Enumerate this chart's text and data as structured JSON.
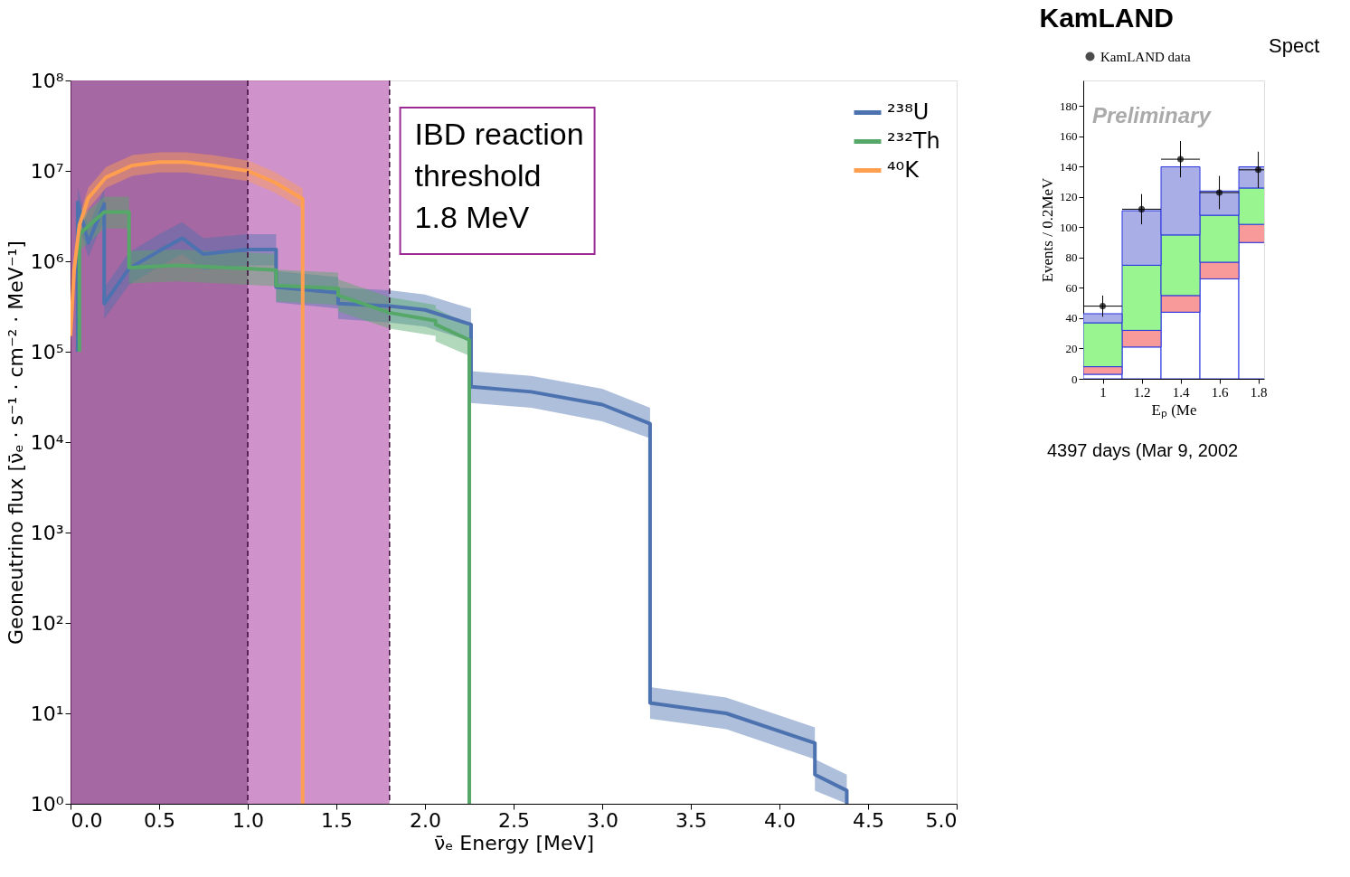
{
  "chart_data": [
    {
      "type": "line",
      "xlabel": "ν̄ₑ Energy [MeV]",
      "ylabel": "Geoneutrino flux [ν̄ₑ · s⁻¹ · cm⁻² · MeV⁻¹]",
      "log": "y",
      "grid": false,
      "legend": "top right",
      "line_style": "solid",
      "marker": "none",
      "xlim": [
        0,
        5
      ],
      "ylim": [
        1,
        100000000
      ],
      "xticks": [
        {
          "value": 0,
          "label": "0.0"
        },
        0.5,
        {
          "value": 1,
          "label": "1.0"
        },
        1.5,
        {
          "value": 2,
          "label": "2.0"
        },
        2.5,
        {
          "value": 3,
          "label": "3.0"
        },
        3.5,
        {
          "value": 4,
          "label": "4.0"
        },
        4.5,
        {
          "value": 5,
          "label": "5.0"
        }
      ],
      "yticks": [
        {
          "value": 1,
          "label": "10⁰"
        },
        {
          "value": 10,
          "label": "10¹"
        },
        {
          "value": 100,
          "label": "10²"
        },
        {
          "value": 1000,
          "label": "10³"
        },
        {
          "value": 10000,
          "label": "10⁴"
        },
        {
          "value": 100000,
          "label": "10⁵"
        },
        {
          "value": 1000000,
          "label": "10⁶"
        },
        {
          "value": 10000000,
          "label": "10⁷"
        },
        {
          "value": 100000000,
          "label": "10⁸"
        }
      ],
      "series": [
        {
          "name": "²³⁸U",
          "color": "#4c72b0",
          "x": [
            0.04,
            0.04,
            0.1,
            0.19,
            0.19,
            0.33,
            0.5,
            0.63,
            0.75,
            1.0,
            1.16,
            1.16,
            1.51,
            1.51,
            1.8,
            2.0,
            2.26,
            2.26,
            2.6,
            3.0,
            3.27,
            3.27,
            3.7,
            4.2,
            4.2,
            4.38,
            4.38
          ],
          "values": [
            100000.0,
            4500000.0,
            1600000.0,
            4300000.0,
            340000.0,
            830000.0,
            1300000.0,
            1800000.0,
            1200000.0,
            1350000.0,
            1350000.0,
            520000.0,
            450000.0,
            340000.0,
            320000.0,
            290000.0,
            200000.0,
            41000.0,
            36000.0,
            26000.0,
            16000.0,
            13,
            10,
            4.7,
            2.1,
            1.4,
            1
          ],
          "lower": [
            null,
            3000000.0,
            1100000.0,
            2900000.0,
            230000.0,
            550000.0,
            870000.0,
            1200000.0,
            800000.0,
            900000.0,
            900000.0,
            350000.0,
            300000.0,
            230000.0,
            210000.0,
            190000.0,
            130000.0,
            27000.0,
            24000.0,
            17000.0,
            11000.0,
            8.7,
            6.7,
            3.1,
            1.4,
            1,
            null
          ],
          "upper": [
            null,
            6700000.0,
            2400000.0,
            6400000.0,
            510000.0,
            1250000.0,
            2000000.0,
            2700000.0,
            1800000.0,
            2000000.0,
            2000000.0,
            780000.0,
            670000.0,
            510000.0,
            480000.0,
            430000.0,
            300000.0,
            61000.0,
            54000.0,
            39000.0,
            24000.0,
            19.5,
            15,
            7,
            3.1,
            2.1,
            null
          ]
        },
        {
          "name": "²³²Th",
          "color": "#55a868",
          "x": [
            0.05,
            0.05,
            0.19,
            0.33,
            0.33,
            0.6,
            1.0,
            1.16,
            1.16,
            1.51,
            1.51,
            1.8,
            2.06,
            2.06,
            2.25,
            2.25
          ],
          "values": [
            100000.0,
            2000000.0,
            3500000.0,
            3500000.0,
            850000.0,
            900000.0,
            830000.0,
            800000.0,
            540000.0,
            500000.0,
            420000.0,
            270000.0,
            220000.0,
            200000.0,
            135000.0,
            1
          ],
          "lower": [
            null,
            1300000.0,
            2300000.0,
            2300000.0,
            570000.0,
            600000.0,
            550000.0,
            530000.0,
            360000.0,
            330000.0,
            280000.0,
            180000.0,
            150000.0,
            130000.0,
            90000.0,
            null
          ],
          "upper": [
            null,
            3000000.0,
            5200000.0,
            5200000.0,
            1300000.0,
            1350000.0,
            1250000.0,
            1200000.0,
            810000.0,
            750000.0,
            630000.0,
            400000.0,
            330000.0,
            300000.0,
            200000.0,
            null
          ]
        },
        {
          "name": "⁴⁰K",
          "color": "#ff9f4f",
          "x": [
            0.0,
            0.02,
            0.05,
            0.1,
            0.2,
            0.35,
            0.5,
            0.65,
            0.8,
            1.0,
            1.15,
            1.31,
            1.31
          ],
          "values": [
            150000.0,
            800000.0,
            2500000.0,
            5000000.0,
            8500000.0,
            11500000.0,
            12500000.0,
            12500000.0,
            11500000.0,
            10000000.0,
            7500000.0,
            4900000.0,
            1
          ],
          "lower": [
            120000.0,
            600000.0,
            1900000.0,
            3800000.0,
            6500000.0,
            8800000.0,
            9600000.0,
            9600000.0,
            8800000.0,
            7700000.0,
            5800000.0,
            3800000.0,
            null
          ],
          "upper": [
            200000.0,
            1000000.0,
            3200000.0,
            6500000.0,
            11000000.0,
            15000000.0,
            16000000.0,
            16000000.0,
            15000000.0,
            13000000.0,
            9800000.0,
            6400000.0,
            null
          ]
        }
      ],
      "bands": [
        {
          "axis": "x",
          "from": 0,
          "to": 1.8,
          "color": "#b04aa8"
        },
        {
          "axis": "x",
          "from": 0,
          "to": 1.0,
          "color": "#5a1a55"
        }
      ],
      "ref_lines": [
        {
          "axis": "x",
          "value": 1.0,
          "line_style": "dashed",
          "color": "#3a0a38"
        },
        {
          "axis": "x",
          "value": 1.8,
          "line_style": "dashed",
          "color": "#3a0a38"
        }
      ],
      "annotations": [
        "IBD reaction\nthreshold\n1.8 MeV"
      ]
    },
    {
      "type": "bar",
      "stacked": true,
      "title": "KamLAND",
      "xlabel": "Eₚ (Me",
      "ylabel": "Events / 0.2MeV",
      "grid": false,
      "legend": "top",
      "x": [
        1.0,
        1.2,
        1.4,
        1.6,
        1.8
      ],
      "xlim": [
        0.9,
        1.83
      ],
      "xticks": [
        1,
        1.2,
        1.4,
        1.6,
        1.8
      ],
      "ylim": [
        0,
        197
      ],
      "yticks": [
        0,
        20,
        40,
        60,
        80,
        100,
        120,
        140,
        160,
        180
      ],
      "series": [
        {
          "color": "#ffffff",
          "values": [
            3,
            21,
            44,
            66,
            90
          ]
        },
        {
          "color": "#f99a9a",
          "values": [
            5,
            11,
            11,
            11,
            12
          ]
        },
        {
          "color": "#99f58f",
          "values": [
            29,
            43,
            40,
            31,
            24
          ]
        },
        {
          "color": "#a9aee6",
          "values": [
            6,
            36,
            45,
            16,
            14
          ]
        },
        {
          "type": "scatter",
          "name": "KamLAND data",
          "color": "#000000",
          "x": [
            1.0,
            1.2,
            1.4,
            1.6,
            1.8
          ],
          "values": [
            48,
            112,
            145,
            123,
            138
          ],
          "errors": [
            7,
            10,
            12,
            11,
            12
          ],
          "xerrors": [
            0.1,
            0.1,
            0.1,
            0.1,
            0.1
          ]
        }
      ],
      "annotations": [
        "Spect",
        "Preliminary",
        "4397 days (Mar 9, 2002"
      ]
    }
  ]
}
